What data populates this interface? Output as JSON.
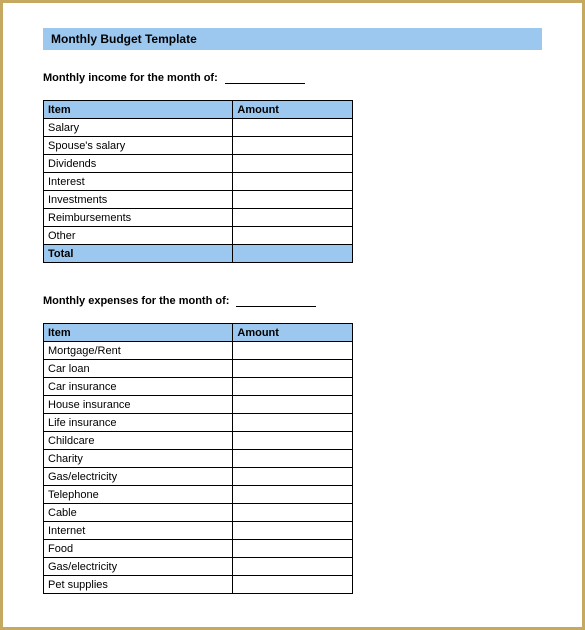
{
  "colors": {
    "border": "#c5a960",
    "header_bg": "#9cc8f0",
    "cell_border": "#000000",
    "background": "#ffffff"
  },
  "title": "Monthly Budget Template",
  "income_section": {
    "heading": "Monthly income for the month of:",
    "columns": [
      "Item",
      "Amount"
    ],
    "rows": [
      {
        "item": "Salary",
        "amount": ""
      },
      {
        "item": "Spouse's salary",
        "amount": ""
      },
      {
        "item": "Dividends",
        "amount": ""
      },
      {
        "item": "Interest",
        "amount": ""
      },
      {
        "item": "Investments",
        "amount": ""
      },
      {
        "item": "Reimbursements",
        "amount": ""
      },
      {
        "item": "Other",
        "amount": ""
      }
    ],
    "total_label": "Total"
  },
  "expenses_section": {
    "heading": "Monthly expenses for the month of:",
    "columns": [
      "Item",
      "Amount"
    ],
    "rows": [
      {
        "item": "Mortgage/Rent",
        "amount": ""
      },
      {
        "item": "Car loan",
        "amount": ""
      },
      {
        "item": "Car insurance",
        "amount": ""
      },
      {
        "item": "House insurance",
        "amount": ""
      },
      {
        "item": "Life insurance",
        "amount": ""
      },
      {
        "item": "Childcare",
        "amount": ""
      },
      {
        "item": "Charity",
        "amount": ""
      },
      {
        "item": "Gas/electricity",
        "amount": ""
      },
      {
        "item": "Telephone",
        "amount": ""
      },
      {
        "item": "Cable",
        "amount": ""
      },
      {
        "item": "Internet",
        "amount": ""
      },
      {
        "item": "Food",
        "amount": ""
      },
      {
        "item": "Gas/electricity",
        "amount": ""
      },
      {
        "item": "Pet supplies",
        "amount": ""
      }
    ]
  }
}
